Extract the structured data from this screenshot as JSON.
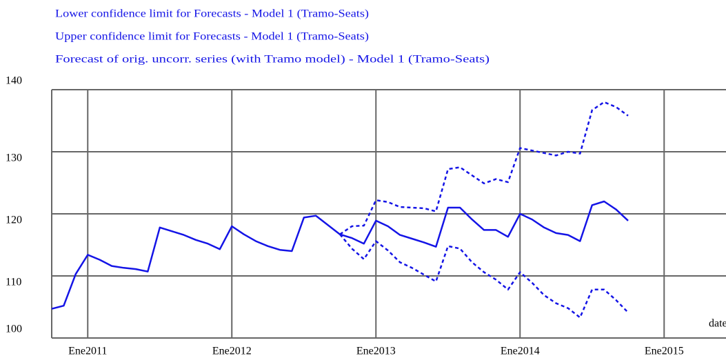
{
  "chart_data": {
    "type": "line",
    "x_label": "date",
    "x": [
      "2010-10",
      "2010-11",
      "2010-12",
      "2011-01",
      "2011-02",
      "2011-03",
      "2011-04",
      "2011-05",
      "2011-06",
      "2011-07",
      "2011-08",
      "2011-09",
      "2011-10",
      "2011-11",
      "2011-12",
      "2012-01",
      "2012-02",
      "2012-03",
      "2012-04",
      "2012-05",
      "2012-06",
      "2012-07",
      "2012-08",
      "2012-09",
      "2012-10",
      "2012-11",
      "2012-12",
      "2013-01",
      "2013-02",
      "2013-03",
      "2013-04",
      "2013-05",
      "2013-06",
      "2013-07",
      "2013-08",
      "2013-09",
      "2013-10",
      "2013-11",
      "2013-12",
      "2014-01",
      "2014-02",
      "2014-03",
      "2014-04",
      "2014-05",
      "2014-06",
      "2014-07",
      "2014-08",
      "2014-09",
      "2014-10"
    ],
    "series": [
      {
        "name": "Lower confidence limit for Forecasts - Model 1 (Tramo-Seats)",
        "color": "#1414e6",
        "dashed": true,
        "values": [
          null,
          null,
          null,
          null,
          null,
          null,
          null,
          null,
          null,
          null,
          null,
          null,
          null,
          null,
          null,
          null,
          null,
          null,
          null,
          null,
          null,
          null,
          null,
          null,
          116.7,
          114.4,
          112.7,
          115.6,
          114.1,
          112.2,
          111.3,
          110.2,
          109.1,
          114.8,
          114.4,
          112.2,
          110.6,
          109.4,
          107.8,
          110.6,
          108.9,
          106.9,
          105.6,
          104.8,
          103.3,
          107.8,
          107.8,
          106.1,
          104.1
        ]
      },
      {
        "name": "Upper confidence limit for Forecasts - Model 1 (Tramo-Seats)",
        "color": "#1414e6",
        "dashed": true,
        "values": [
          null,
          null,
          null,
          null,
          null,
          null,
          null,
          null,
          null,
          null,
          null,
          null,
          null,
          null,
          null,
          null,
          null,
          null,
          null,
          null,
          null,
          null,
          null,
          null,
          116.7,
          118.0,
          118.1,
          122.2,
          121.9,
          121.1,
          121.0,
          120.9,
          120.4,
          127.2,
          127.5,
          126.2,
          124.9,
          125.6,
          125.1,
          130.6,
          130.2,
          129.8,
          129.4,
          130.0,
          129.7,
          136.7,
          138.0,
          137.2,
          135.8
        ]
      },
      {
        "name": "Forecast of orig. uncorr. series (with Tramo model) - Model 1 (Tramo-Seats)",
        "color": "#1414e6",
        "dashed": false,
        "values": [
          104.7,
          105.2,
          110.3,
          113.4,
          112.6,
          111.6,
          111.3,
          111.1,
          110.7,
          117.8,
          117.2,
          116.6,
          115.8,
          115.2,
          114.3,
          118.0,
          116.7,
          115.6,
          114.8,
          114.2,
          114.0,
          119.4,
          119.7,
          118.2,
          116.7,
          116.1,
          115.2,
          118.9,
          118.0,
          116.6,
          116.0,
          115.4,
          114.7,
          121.0,
          121.0,
          119.1,
          117.4,
          117.4,
          116.3,
          120.0,
          119.1,
          117.8,
          116.9,
          116.6,
          115.6,
          121.4,
          122.0,
          120.7,
          118.9
        ]
      }
    ],
    "xlim": [
      "2010-10",
      "2015-06"
    ],
    "xticks": [
      {
        "value": "2011-01",
        "label": "Ene2011"
      },
      {
        "value": "2012-01",
        "label": "Ene2012"
      },
      {
        "value": "2013-01",
        "label": "Ene2013"
      },
      {
        "value": "2014-01",
        "label": "Ene2014"
      },
      {
        "value": "2015-01",
        "label": "Ene2015"
      }
    ],
    "ylim": [
      100,
      140
    ],
    "yticks": [
      100,
      110,
      120,
      130,
      140
    ],
    "grid": true
  }
}
